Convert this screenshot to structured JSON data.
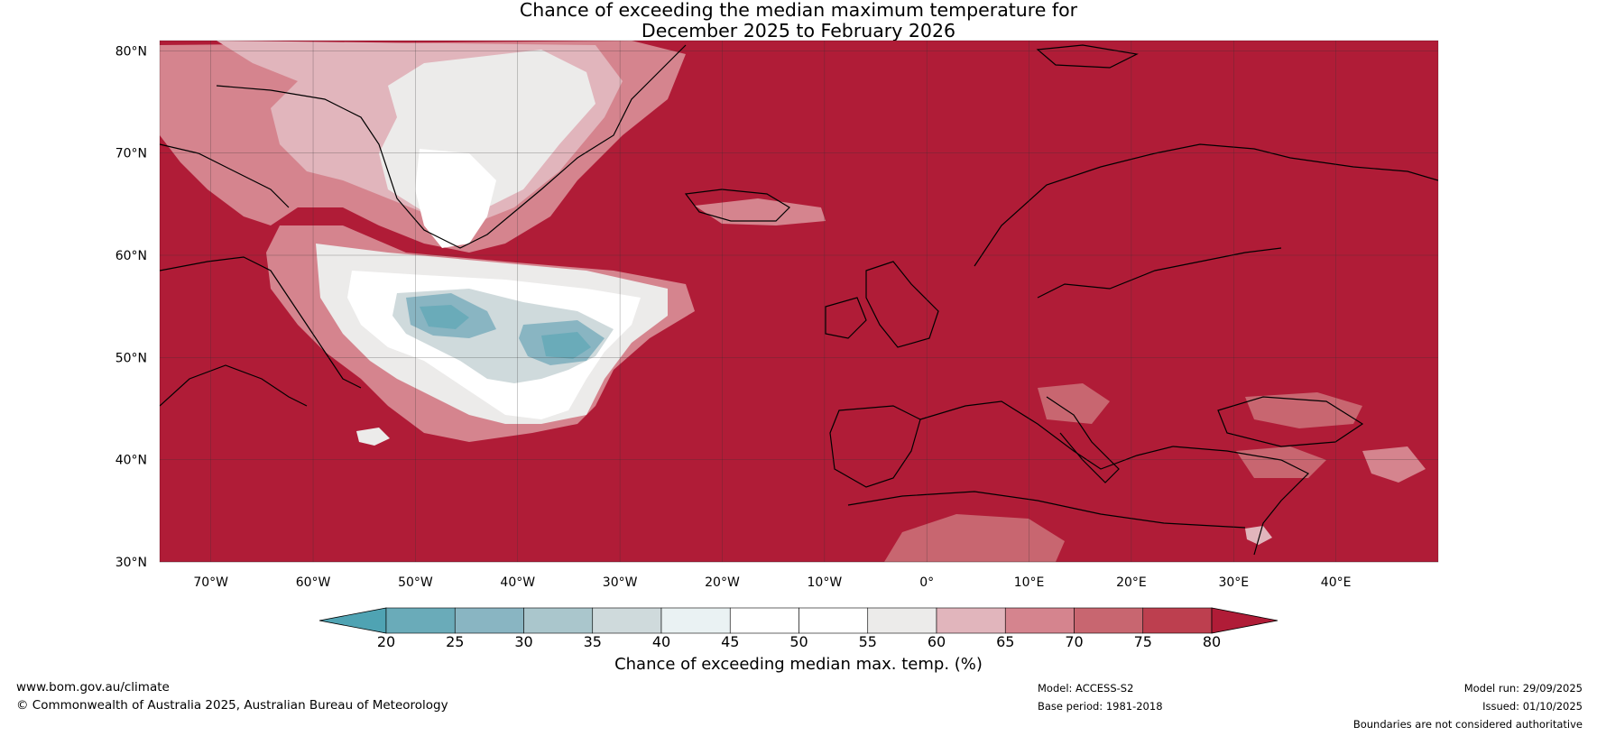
{
  "title": {
    "line1": "Chance of exceeding the median maximum temperature for",
    "line2": "December 2025 to February 2026"
  },
  "map": {
    "lat_labels": [
      "80°N",
      "70°N",
      "60°N",
      "50°N",
      "40°N",
      "30°N"
    ],
    "lon_labels": [
      "70°W",
      "60°W",
      "50°W",
      "40°W",
      "30°W",
      "20°W",
      "10°W",
      "0°",
      "10°E",
      "20°E",
      "30°E",
      "40°E"
    ],
    "extent": {
      "lon_min": -75,
      "lon_max": 50,
      "lat_min": 30,
      "lat_max": 81
    },
    "background_color": "#b01c37"
  },
  "colorbar": {
    "title": "Chance of exceeding median max. temp. (%)",
    "ticks": [
      "20",
      "25",
      "30",
      "35",
      "40",
      "45",
      "50",
      "55",
      "60",
      "65",
      "70",
      "75",
      "80"
    ],
    "colors": [
      "#4fa3b3",
      "#6aabb9",
      "#89b5c2",
      "#aac6cc",
      "#cfdadc",
      "#eaf2f3",
      "#ffffff",
      "#ffffff",
      "#ecebea",
      "#e1b5bc",
      "#d5848e",
      "#c86670",
      "#bd3f4f",
      "#b01c37"
    ]
  },
  "footer": {
    "website": "www.bom.gov.au/climate",
    "copyright": "© Commonwealth of Australia 2025, Australian Bureau of Meteorology",
    "model": "Model: ACCESS-S2",
    "base_period": "Base period: 1981-2018",
    "model_run": "Model run: 29/09/2025",
    "issued": "Issued: 01/10/2025",
    "disclaimer": "Boundaries are not considered authoritative"
  }
}
